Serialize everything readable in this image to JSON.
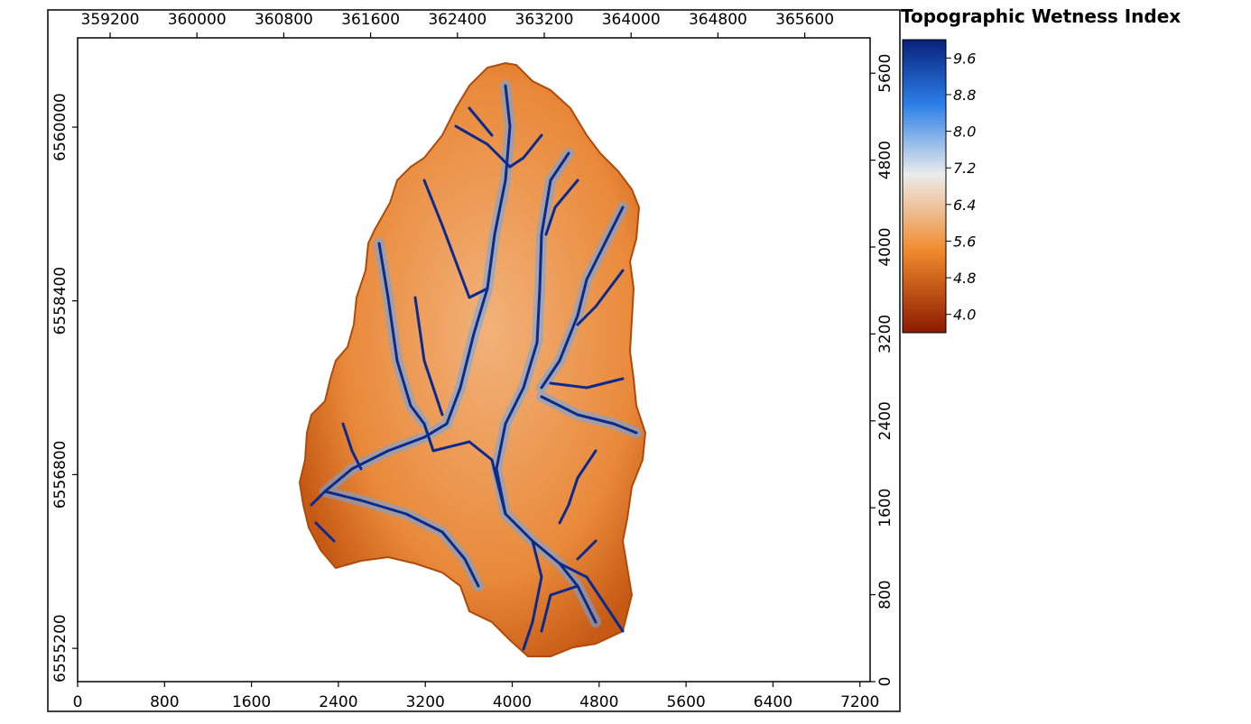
{
  "legend": {
    "title": "Topographic Wetness Index",
    "ticks": [
      "9.6",
      "8.8",
      "8.0",
      "7.2",
      "6.4",
      "5.6",
      "4.8",
      "4.0"
    ],
    "tick_values": [
      9.6,
      8.8,
      8.0,
      7.2,
      6.4,
      5.6,
      4.8,
      4.0
    ],
    "range": [
      3.6,
      10.0
    ],
    "colors": {
      "high": "#08217a",
      "mid_high": "#2a7fe8",
      "mid": "#ececec",
      "mid_low": "#f08a2c",
      "low": "#8c1a00"
    }
  },
  "axes": {
    "top": {
      "label": "",
      "ticks": [
        359200,
        360000,
        360800,
        361600,
        362400,
        363200,
        364000,
        364800,
        365600
      ],
      "tick_labels": [
        "359200",
        "360000",
        "360800",
        "361600",
        "362400",
        "363200",
        "364000",
        "364800",
        "365600"
      ]
    },
    "left": {
      "label": "",
      "ticks": [
        6560000,
        6558400,
        6556800,
        6555200
      ],
      "tick_labels": [
        "6560000",
        "6558400",
        "6556800",
        "6555200"
      ]
    },
    "bottom": {
      "label": "",
      "ticks": [
        0,
        800,
        1600,
        2400,
        3200,
        4000,
        4800,
        5600,
        6400,
        7200
      ],
      "tick_labels": [
        "0",
        "800",
        "1600",
        "2400",
        "3200",
        "4000",
        "4800",
        "5600",
        "6400",
        "7200"
      ]
    },
    "right": {
      "label": "",
      "ticks": [
        0,
        800,
        1600,
        2400,
        3200,
        4000,
        4800,
        5600
      ],
      "tick_labels": [
        "0",
        "800",
        "1600",
        "2400",
        "3200",
        "4000",
        "4800",
        "5600"
      ]
    }
  },
  "map": {
    "background": "#ffffff",
    "watershed_fill": "#e9893a",
    "stream_color": "#0a2a8f"
  }
}
